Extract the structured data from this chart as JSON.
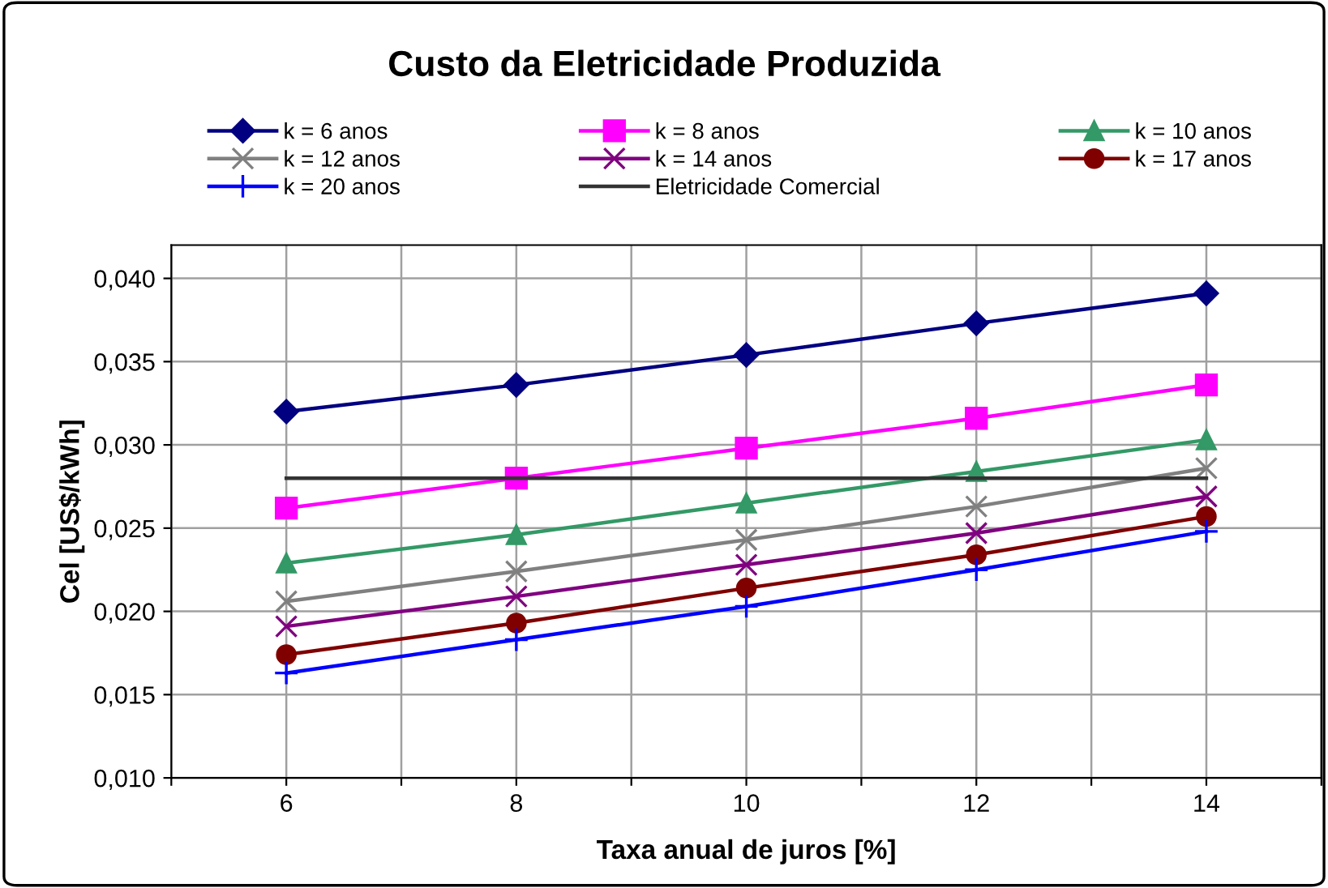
{
  "chart_data": {
    "type": "line",
    "title": "Custo da Eletricidade Produzida",
    "xlabel": "Taxa anual de juros [%]",
    "ylabel": "Cel [US$/kWh]",
    "x": [
      6,
      8,
      10,
      12,
      14
    ],
    "series": [
      {
        "name": "k = 6 anos",
        "color": "#000080",
        "marker": "diamond",
        "values": [
          0.032,
          0.0336,
          0.0354,
          0.0373,
          0.0391
        ]
      },
      {
        "name": "k = 8 anos",
        "color": "#ff00ff",
        "marker": "square",
        "values": [
          0.0262,
          0.028,
          0.0298,
          0.0316,
          0.0336
        ]
      },
      {
        "name": "k = 10 anos",
        "color": "#339966",
        "marker": "triangle",
        "values": [
          0.0229,
          0.0246,
          0.0265,
          0.0284,
          0.0303
        ]
      },
      {
        "name": "k = 12 anos",
        "color": "#808080",
        "marker": "cross",
        "values": [
          0.0206,
          0.0224,
          0.0243,
          0.0263,
          0.0286
        ]
      },
      {
        "name": "k = 14 anos",
        "color": "#800080",
        "marker": "cross",
        "values": [
          0.0191,
          0.0209,
          0.0228,
          0.0247,
          0.0269
        ]
      },
      {
        "name": "k = 17 anos",
        "color": "#800000",
        "marker": "circle",
        "values": [
          0.0174,
          0.0193,
          0.0214,
          0.0234,
          0.0257
        ]
      },
      {
        "name": "k = 20 anos",
        "color": "#0000ff",
        "marker": "plus",
        "values": [
          0.0163,
          0.0183,
          0.0203,
          0.0225,
          0.0248
        ]
      },
      {
        "name": "Eletricidade Comercial",
        "color": "#333333",
        "marker": "none",
        "values": [
          0.028,
          0.028,
          0.028,
          0.028,
          0.028
        ]
      }
    ],
    "xlim": [
      5,
      15
    ],
    "xticks": [
      {
        "value": 5,
        "label": null
      },
      6,
      {
        "value": 7,
        "label": null
      },
      8,
      {
        "value": 9,
        "label": null
      },
      10,
      {
        "value": 11,
        "label": null
      },
      12,
      {
        "value": 13,
        "label": null
      },
      14,
      {
        "value": 15,
        "label": null
      }
    ],
    "ylim": [
      0.01,
      0.042
    ],
    "yticks": [
      {
        "value": 0.01,
        "label": "0,010"
      },
      {
        "value": 0.015,
        "label": "0,015"
      },
      {
        "value": 0.02,
        "label": "0,020"
      },
      {
        "value": 0.025,
        "label": "0,025"
      },
      {
        "value": 0.03,
        "label": "0,030"
      },
      {
        "value": 0.035,
        "label": "0,035"
      },
      {
        "value": 0.04,
        "label": "0,040"
      }
    ],
    "grid": true,
    "legend": "top",
    "line_style": "solid"
  }
}
